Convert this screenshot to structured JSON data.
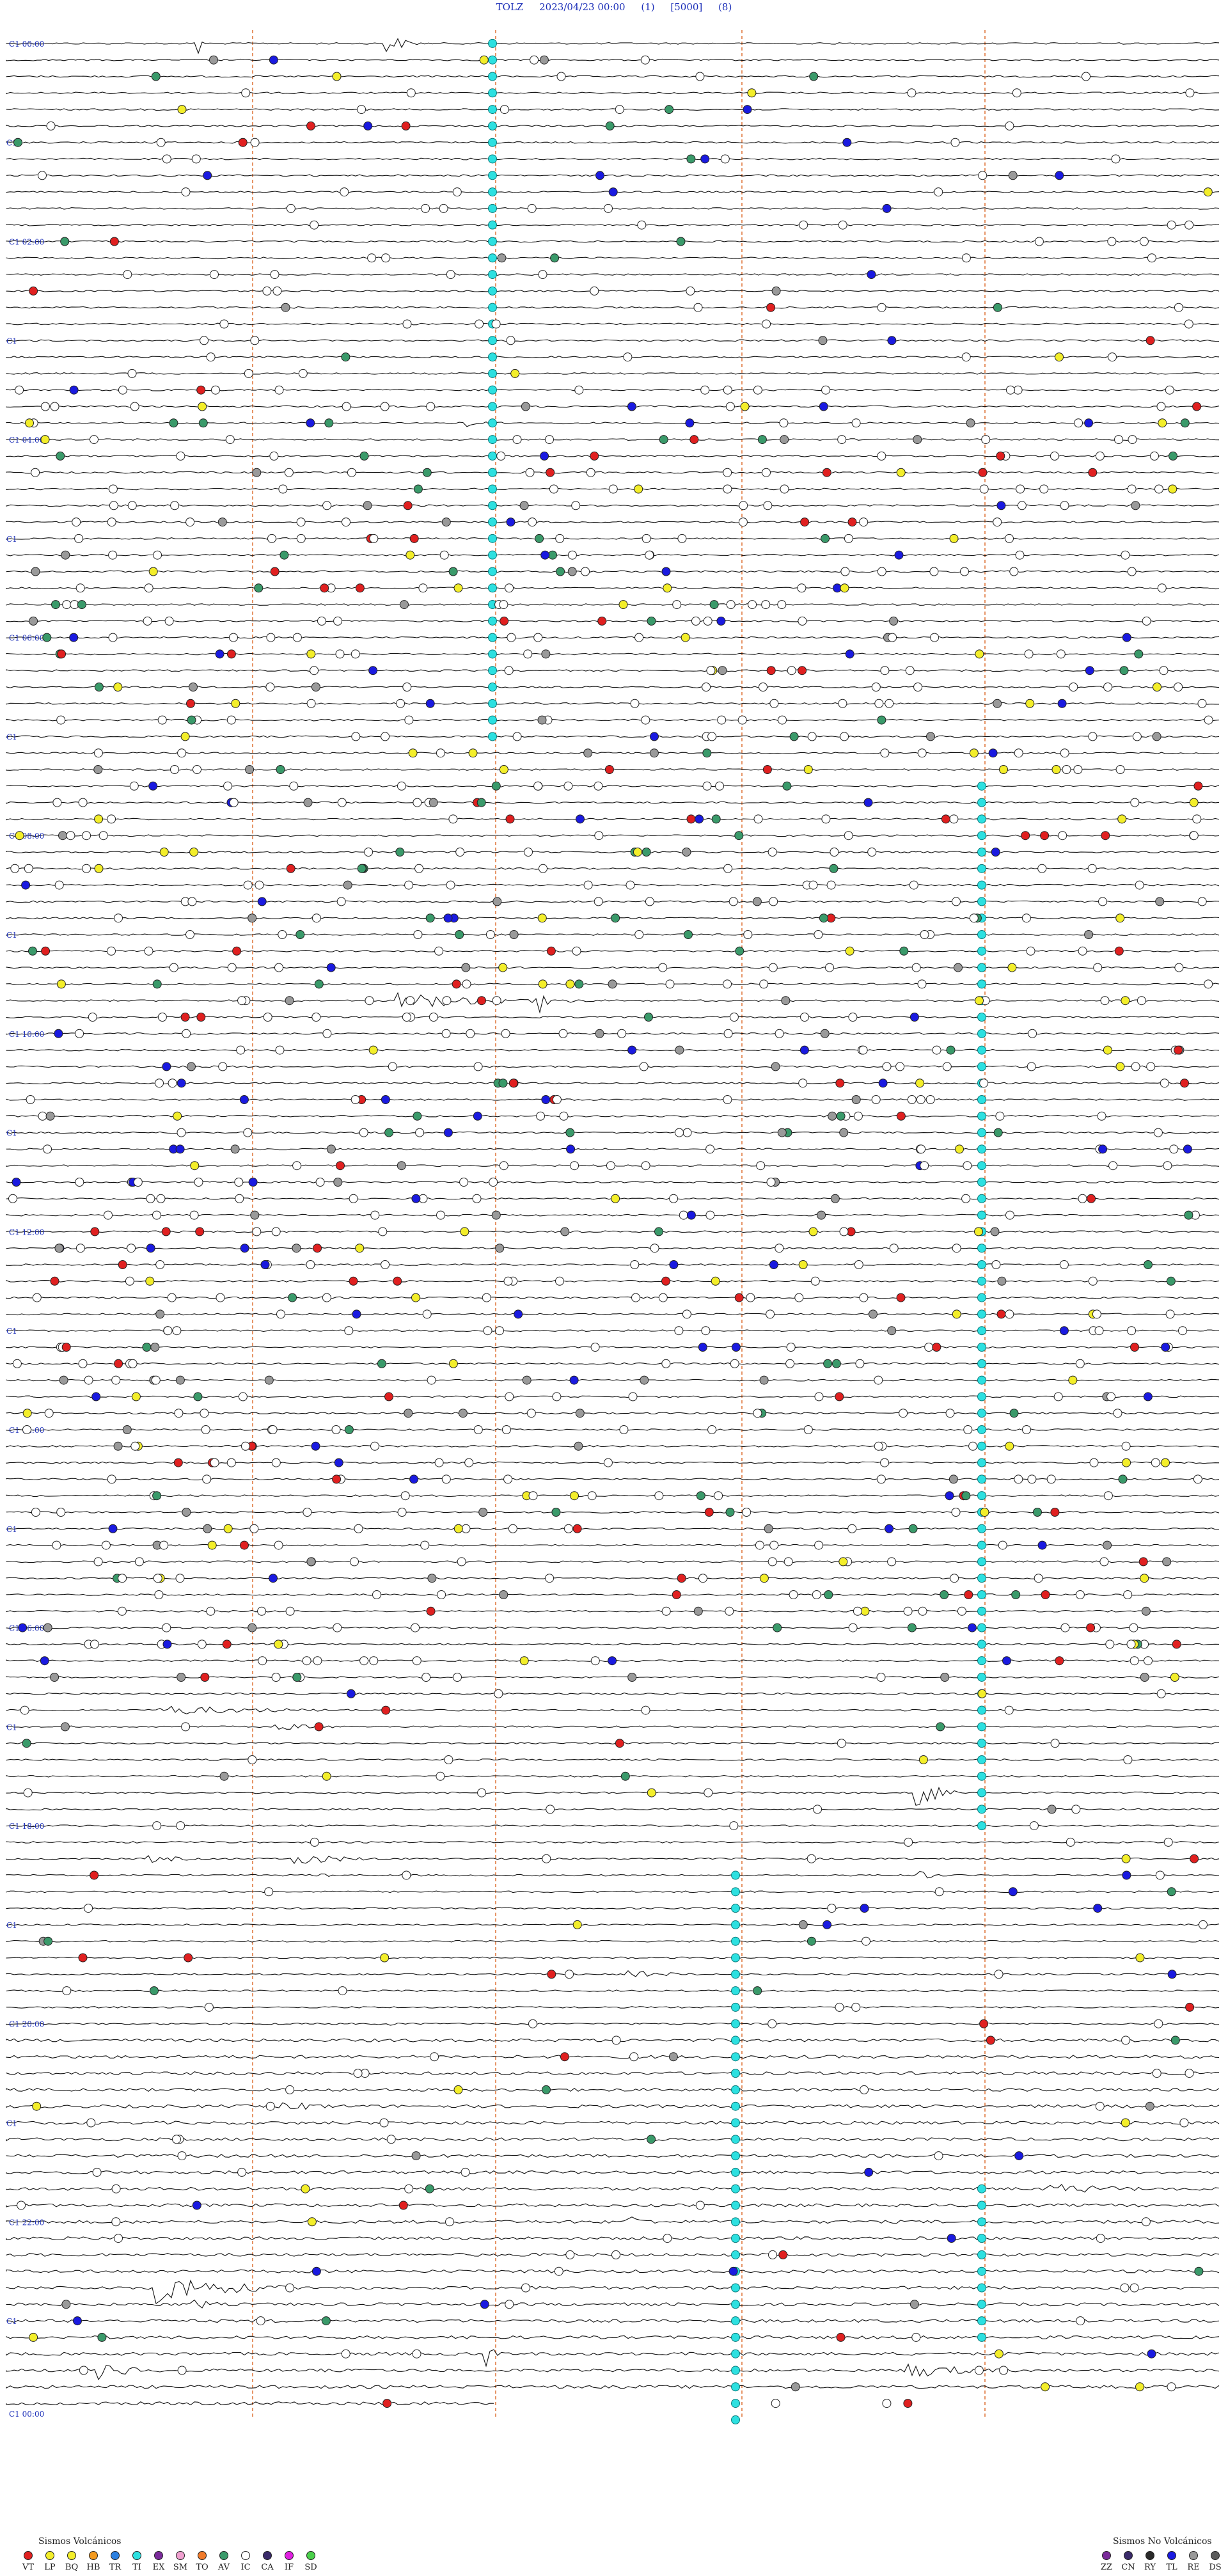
{
  "header": {
    "station": "TOLZ",
    "datetime": "2023/04/23 00:00",
    "filter": "(1)",
    "scale": "[5000]",
    "gain": "(8)"
  },
  "chart_data": {
    "type": "helicorder",
    "hour_labels": [
      "00:00",
      "02:00",
      "04:00",
      "06:00",
      "08:00",
      "10:00",
      "12:00",
      "14:00",
      "16:00",
      "18:00",
      "20:00",
      "22:00",
      "00:00"
    ],
    "traces_per_hour": 6,
    "trace_count": 144,
    "colors": {
      "trace": "#111111",
      "marker_line": "#e07a40",
      "label": "#1c2fb8",
      "saturation": "#2de0e0"
    }
  },
  "legend_volcanic": {
    "title": "Sismos Volcánicos",
    "items": [
      {
        "code": "VT",
        "color": "#e02020"
      },
      {
        "code": "LP",
        "color": "#f3ee2a"
      },
      {
        "code": "BQ",
        "color": "#f3ee2a"
      },
      {
        "code": "HB",
        "color": "#f39a1f"
      },
      {
        "code": "TR",
        "color": "#2a7fe0"
      },
      {
        "code": "TI",
        "color": "#2de0e0"
      },
      {
        "code": "EX",
        "color": "#7a2a9a"
      },
      {
        "code": "SM",
        "color": "#f0a0d0"
      },
      {
        "code": "TO",
        "color": "#f07a2a"
      },
      {
        "code": "AV",
        "color": "#3a9a6a"
      },
      {
        "code": "IC",
        "color": "#ffffff"
      },
      {
        "code": "CA",
        "color": "#3a2a6a"
      },
      {
        "code": "IF",
        "color": "#e020e0"
      },
      {
        "code": "SD",
        "color": "#4ad04a"
      }
    ]
  },
  "legend_nonvolcanic": {
    "title": "Sismos No Volcánicos",
    "items": [
      {
        "code": "ZZ",
        "color": "#7a2a9a"
      },
      {
        "code": "CN",
        "color": "#3a2a6a"
      },
      {
        "code": "RY",
        "color": "#2a2a2a"
      },
      {
        "code": "TL",
        "color": "#1a1ae0"
      },
      {
        "code": "RE",
        "color": "#9a9a9a"
      },
      {
        "code": "DS",
        "color": "#5a5a5a"
      }
    ]
  }
}
